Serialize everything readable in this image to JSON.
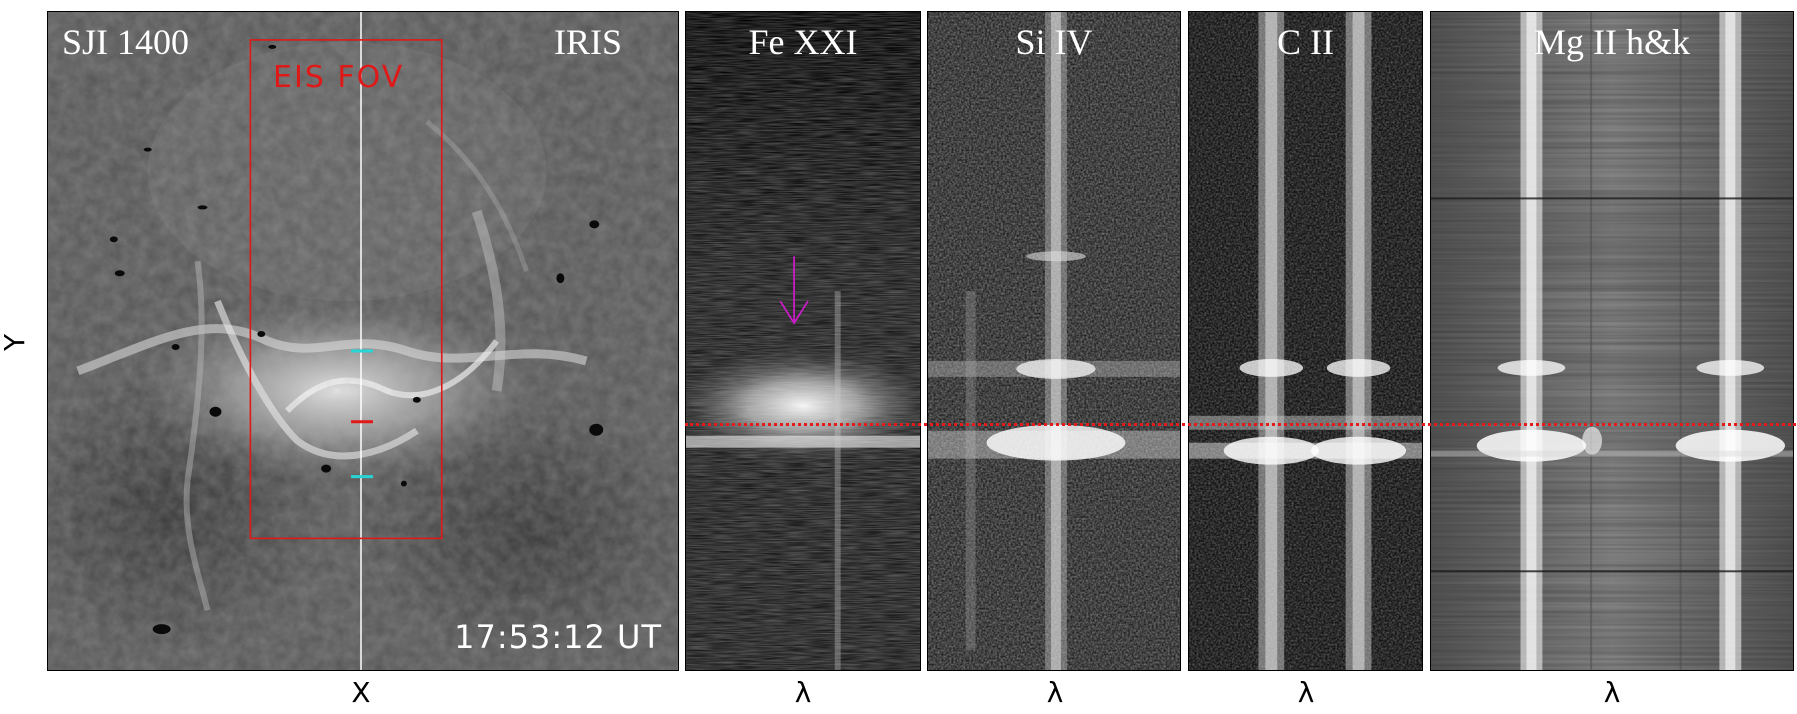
{
  "axis_labels": {
    "y": "Y",
    "x": "X",
    "lambda": "λ"
  },
  "panels": {
    "sji": {
      "title_left": "SJI 1400",
      "title_right": "IRIS",
      "fov_label": "EIS  FOV",
      "timestamp": "17:53:12  UT"
    },
    "fexxi": {
      "title": "Fe XXI"
    },
    "siiv": {
      "title": "Si IV"
    },
    "cii": {
      "title": "C II"
    },
    "mgii": {
      "title": "Mg II h&k"
    }
  },
  "colors": {
    "fov_box": "#e01818",
    "slit_marker_upper": "#28d4d4",
    "slit_marker_center": "#e01818",
    "slit_marker_lower": "#28d4d4",
    "reference_line": "#e31b1b",
    "arrow": "#c81cc8"
  },
  "icons": {
    "arrow": "down-arrow-icon"
  }
}
